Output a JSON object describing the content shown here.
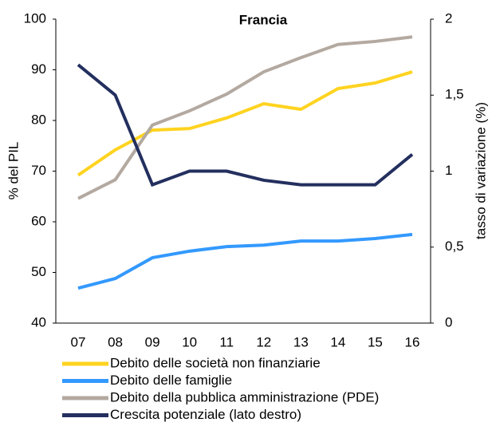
{
  "chart_data": {
    "type": "line",
    "title": "Francia",
    "y_label": "% del PIL",
    "y2_label": "tasso di variazione (%)",
    "categories": [
      "07",
      "08",
      "09",
      "10",
      "11",
      "12",
      "13",
      "14",
      "15",
      "16"
    ],
    "ylim": [
      40,
      100
    ],
    "yticks": [
      40,
      50,
      60,
      70,
      80,
      90,
      100
    ],
    "y2lim": [
      0,
      2
    ],
    "y2ticks": [
      0,
      {
        "value": 0.5,
        "label": "0,5"
      },
      1,
      {
        "value": 1.5,
        "label": "1,5"
      },
      2
    ],
    "grid": false,
    "legend": "bottom",
    "series": [
      {
        "name": "Debito delle società non finanziarie",
        "color": "#ffd320",
        "values": [
          69.2,
          74.2,
          78.1,
          78.4,
          80.5,
          83.3,
          82.2,
          86.3,
          87.4,
          89.6
        ]
      },
      {
        "name": "Debito delle famiglie",
        "color": "#3399ff",
        "values": [
          46.9,
          48.8,
          52.9,
          54.2,
          55.1,
          55.4,
          56.2,
          56.2,
          56.7,
          57.5
        ]
      },
      {
        "name": "Debito della pubblica amministrazione (PDE)",
        "color": "#b3a9a0",
        "values": [
          64.6,
          68.3,
          79.1,
          81.9,
          85.2,
          89.6,
          92.4,
          95.0,
          95.6,
          96.5
        ]
      },
      {
        "name": "Crescita potenziale (lato destro)",
        "color": "#232f5e",
        "axis": "y2",
        "values": [
          1.7,
          1.5,
          0.91,
          1.0,
          1.0,
          0.94,
          0.91,
          0.91,
          0.91,
          1.11
        ]
      }
    ]
  }
}
